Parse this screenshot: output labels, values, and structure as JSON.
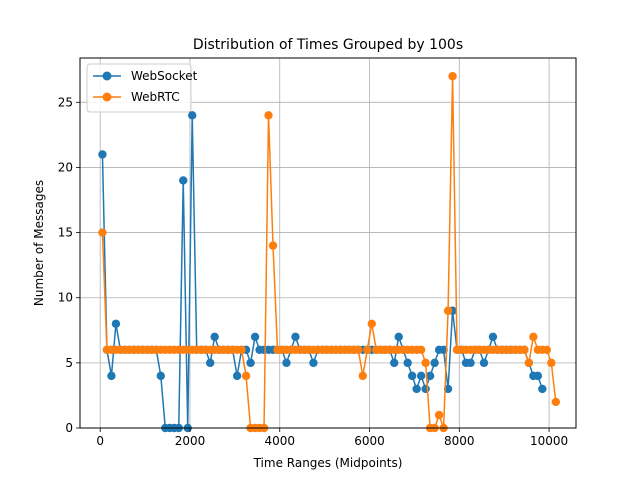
{
  "chart_data": {
    "type": "line",
    "title": "Distribution of Times Grouped by 100s",
    "xlabel": "Time Ranges (Midpoints)",
    "ylabel": "Number of Messages",
    "xlim": [
      -450,
      10600
    ],
    "ylim": [
      0,
      28.4
    ],
    "xticks": [
      0,
      2000,
      4000,
      6000,
      8000,
      10000
    ],
    "yticks": [
      0,
      5,
      10,
      15,
      20,
      25
    ],
    "grid": true,
    "legend": "top-left",
    "series": [
      {
        "name": "WebSocket",
        "color": "#1f77b4",
        "x": [
          50,
          150,
          250,
          350,
          450,
          550,
          650,
          750,
          850,
          950,
          1050,
          1150,
          1250,
          1350,
          1450,
          1550,
          1650,
          1750,
          1850,
          1950,
          2050,
          2150,
          2250,
          2350,
          2450,
          2550,
          2650,
          2750,
          2850,
          2950,
          3050,
          3150,
          3250,
          3350,
          3450,
          3550,
          3650,
          3750,
          3850,
          3950,
          4050,
          4150,
          4250,
          4350,
          4450,
          4550,
          4650,
          4750,
          4850,
          4950,
          5050,
          5150,
          5250,
          5350,
          5450,
          5550,
          5650,
          5750,
          5850,
          5950,
          6050,
          6150,
          6250,
          6350,
          6450,
          6550,
          6650,
          6750,
          6850,
          6950,
          7050,
          7150,
          7250,
          7350,
          7450,
          7550,
          7650,
          7750,
          7850,
          7950,
          8050,
          8150,
          8250,
          8350,
          8450,
          8550,
          8650,
          8750,
          8850,
          8950,
          9050,
          9150,
          9250,
          9350,
          9450,
          9550,
          9650,
          9750,
          9850
        ],
        "values": [
          21,
          6,
          4,
          8,
          6,
          6,
          6,
          6,
          6,
          6,
          6,
          6,
          6,
          4,
          0,
          0,
          0,
          0,
          19,
          0,
          24,
          6,
          6,
          6,
          5,
          7,
          6,
          6,
          6,
          6,
          4,
          6,
          6,
          5,
          7,
          6,
          6,
          6,
          6,
          6,
          6,
          5,
          6,
          7,
          6,
          6,
          6,
          5,
          6,
          6,
          6,
          6,
          6,
          6,
          6,
          6,
          6,
          6,
          6,
          6,
          6,
          6,
          6,
          6,
          6,
          5,
          7,
          6,
          5,
          4,
          3,
          4,
          3,
          4,
          5,
          6,
          6,
          3,
          9,
          6,
          6,
          5,
          5,
          6,
          6,
          5,
          6,
          7,
          6,
          6,
          6,
          6,
          6,
          6,
          6,
          5,
          4,
          4,
          3
        ]
      },
      {
        "name": "WebRTC",
        "color": "#ff7f0e",
        "x": [
          50,
          150,
          250,
          350,
          450,
          550,
          650,
          750,
          850,
          950,
          1050,
          1150,
          1250,
          1350,
          1450,
          1550,
          1650,
          1750,
          1850,
          1950,
          2050,
          2150,
          2250,
          2350,
          2450,
          2550,
          2650,
          2750,
          2850,
          2950,
          3050,
          3150,
          3250,
          3350,
          3450,
          3550,
          3650,
          3750,
          3850,
          3950,
          4050,
          4150,
          4250,
          4350,
          4450,
          4550,
          4650,
          4750,
          4850,
          4950,
          5050,
          5150,
          5250,
          5350,
          5450,
          5550,
          5650,
          5750,
          5850,
          5950,
          6050,
          6150,
          6250,
          6350,
          6450,
          6550,
          6650,
          6750,
          6850,
          6950,
          7050,
          7150,
          7250,
          7350,
          7450,
          7550,
          7650,
          7750,
          7850,
          7950,
          8050,
          8150,
          8250,
          8350,
          8450,
          8550,
          8650,
          8750,
          8850,
          8950,
          9050,
          9150,
          9250,
          9350,
          9450,
          9550,
          9650,
          9750,
          9850,
          9950,
          10050,
          10150
        ],
        "values": [
          15,
          6,
          6,
          6,
          6,
          6,
          6,
          6,
          6,
          6,
          6,
          6,
          6,
          6,
          6,
          6,
          6,
          6,
          6,
          6,
          6,
          6,
          6,
          6,
          6,
          6,
          6,
          6,
          6,
          6,
          6,
          6,
          4,
          0,
          0,
          0,
          0,
          24,
          14,
          6,
          6,
          6,
          6,
          6,
          6,
          6,
          6,
          6,
          6,
          6,
          6,
          6,
          6,
          6,
          6,
          6,
          6,
          6,
          4,
          6,
          8,
          6,
          6,
          6,
          6,
          6,
          6,
          6,
          6,
          6,
          6,
          6,
          5,
          0,
          0,
          1,
          0,
          9,
          27,
          6,
          6,
          6,
          6,
          6,
          6,
          6,
          6,
          6,
          6,
          6,
          6,
          6,
          6,
          6,
          6,
          5,
          7,
          6,
          6,
          6,
          5,
          2
        ]
      }
    ]
  }
}
